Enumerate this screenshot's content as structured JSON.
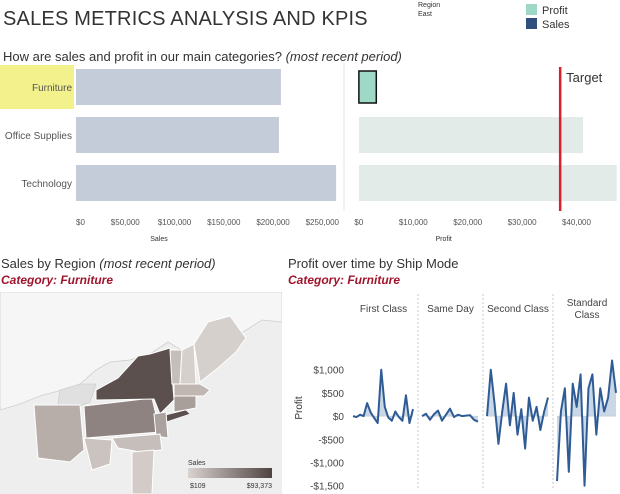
{
  "title": "SALES METRICS ANALYSIS AND KPIS",
  "region_filter": {
    "label": "Region",
    "value": "East"
  },
  "legend": [
    {
      "label": "Profit",
      "color": "#9fd8c6"
    },
    {
      "label": "Sales",
      "color": "#2f4f7f"
    }
  ],
  "top_section": {
    "title": "How are sales and profit in our main categories?",
    "title_note": "(most recent period)"
  },
  "region_section": {
    "title": "Sales by Region",
    "title_note": "(most recent period)",
    "category_label": "Category: Furniture",
    "legend_title": "Sales",
    "legend_min": "$109",
    "legend_max": "$93,373"
  },
  "time_section": {
    "title": "Profit over time by Ship Mode",
    "category_label": "Category: Furniture"
  },
  "colors": {
    "sales_bar": "#c5ccd9",
    "profit_bar": "#e3ebe8",
    "profit_selected": "#9fd8c6",
    "highlight": "#f3f18c",
    "target_line": "#d9212c",
    "line_series": "#2f5c94",
    "line_fill": "#b4c6dd",
    "subtitle_red": "#a0152c"
  },
  "chart_data": [
    {
      "type": "bar",
      "id": "sales_by_category",
      "categories": [
        "Furniture",
        "Office Supplies",
        "Technology"
      ],
      "values": [
        208000,
        206000,
        264000
      ],
      "highlighted_category": "Furniture",
      "xlabel": "Sales",
      "xlim": [
        0,
        270000
      ],
      "x_ticks": [
        0,
        50000,
        100000,
        150000,
        200000,
        250000
      ],
      "x_tick_labels": [
        "$0",
        "$50,000",
        "$100,000",
        "$150,000",
        "$200,000",
        "$250,000"
      ]
    },
    {
      "type": "bar",
      "id": "profit_by_category",
      "categories": [
        "Furniture",
        "Office Supplies",
        "Technology"
      ],
      "values": [
        3200,
        41200,
        47400
      ],
      "highlighted_category": "Furniture",
      "xlabel": "Profit",
      "xlim": [
        -2000,
        48000
      ],
      "x_ticks": [
        0,
        10000,
        20000,
        30000,
        40000
      ],
      "x_tick_labels": [
        "$0",
        "$10,000",
        "$20,000",
        "$30,000",
        "$40,000"
      ],
      "reference_line": {
        "label": "Target",
        "value": 37000
      }
    },
    {
      "type": "line",
      "id": "profit_over_time_by_ship_mode",
      "ylabel": "Profit",
      "ylim": [
        -1550,
        1900
      ],
      "y_ticks": [
        -1500,
        -1000,
        -500,
        0,
        500,
        1000
      ],
      "y_tick_labels": [
        "-$1,500",
        "-$1,000",
        "-$500",
        "$0",
        "$500",
        "$1,000"
      ],
      "series": [
        {
          "name": "First Class",
          "values": [
            0,
            -20,
            30,
            0,
            280,
            80,
            -40,
            -150,
            1000,
            200,
            -30,
            -100,
            100,
            -20,
            -100,
            450,
            -150,
            150
          ]
        },
        {
          "name": "Same Day",
          "values": [
            0,
            50,
            -80,
            40,
            120,
            -100,
            30,
            160,
            -20,
            30,
            0,
            10,
            20,
            -80,
            -120
          ]
        },
        {
          "name": "Second Class",
          "values": [
            0,
            1000,
            250,
            -600,
            100,
            700,
            -200,
            500,
            -400,
            150,
            -700,
            400,
            -100,
            200,
            -300,
            100,
            400
          ]
        },
        {
          "name": "Standard Class",
          "values": [
            -1400,
            100,
            600,
            -1200,
            700,
            200,
            900,
            -1500,
            600,
            900,
            -400,
            600,
            100,
            400,
            1200,
            500
          ]
        }
      ]
    }
  ]
}
